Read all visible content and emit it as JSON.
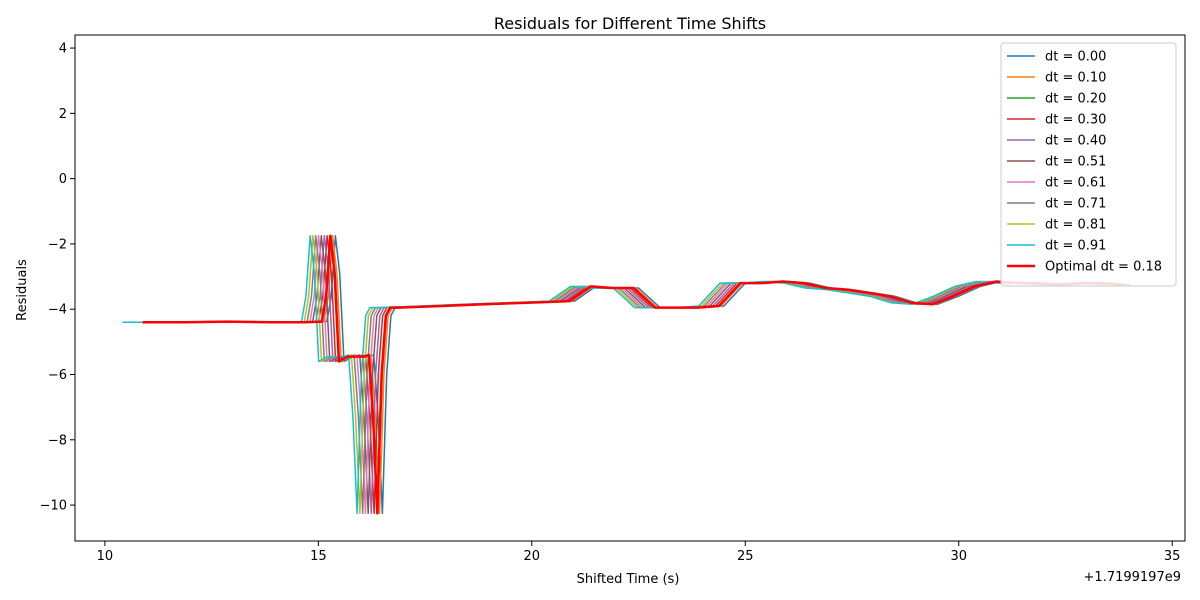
{
  "chart_data": {
    "type": "line",
    "title": "Residuals for Different Time Shifts",
    "xlabel": "Shifted Time (s)",
    "ylabel": "Residuals",
    "x_offset_label": "+1.7199197e9",
    "xlim": [
      9.3,
      35.3
    ],
    "ylim": [
      -11.1,
      4.4
    ],
    "xticks": [
      10,
      15,
      20,
      25,
      30,
      35
    ],
    "yticks": [
      -10,
      -8,
      -6,
      -4,
      -2,
      0,
      2,
      4
    ],
    "ytick_labels": [
      "−10",
      "−8",
      "−6",
      "−4",
      "−2",
      "0",
      "2",
      "4"
    ],
    "grid": false,
    "legend_position": "top-right",
    "base_series": {
      "name": "dt = 0.00",
      "x": [
        11.0,
        12.0,
        13.0,
        14.0,
        14.8,
        15.2,
        15.3,
        15.4,
        15.5,
        15.6,
        15.8,
        16.0,
        16.2,
        16.3,
        16.4,
        16.5,
        16.6,
        16.7,
        16.8,
        17.0,
        18.0,
        19.0,
        20.0,
        20.5,
        21.0,
        21.5,
        22.0,
        22.5,
        23.0,
        23.5,
        24.0,
        24.5,
        25.0,
        25.5,
        26.0,
        26.5,
        27.0,
        27.5,
        28.0,
        28.5,
        29.0,
        29.5,
        30.0,
        30.5,
        31.0,
        31.5,
        32.0,
        32.5,
        33.0,
        33.5,
        34.0
      ],
      "y": [
        -4.4,
        -4.4,
        -4.38,
        -4.4,
        -4.4,
        -4.38,
        -3.6,
        -1.75,
        -2.9,
        -5.6,
        -5.45,
        -5.45,
        -5.45,
        -5.4,
        -7.3,
        -10.25,
        -6.0,
        -4.2,
        -3.95,
        -3.95,
        -3.9,
        -3.85,
        -3.8,
        -3.78,
        -3.75,
        -3.3,
        -3.35,
        -3.35,
        -3.95,
        -3.95,
        -3.95,
        -3.9,
        -3.2,
        -3.2,
        -3.15,
        -3.2,
        -3.35,
        -3.4,
        -3.5,
        -3.6,
        -3.8,
        -3.85,
        -3.6,
        -3.3,
        -3.15,
        -3.2,
        -3.2,
        -3.25,
        -3.2,
        -3.2,
        -3.25
      ]
    },
    "series": [
      {
        "name": "dt = 0.00",
        "dt": 0.0,
        "color": "#1f77b4"
      },
      {
        "name": "dt = 0.10",
        "dt": 0.1,
        "color": "#ff7f0e"
      },
      {
        "name": "dt = 0.20",
        "dt": 0.2,
        "color": "#2ca02c"
      },
      {
        "name": "dt = 0.30",
        "dt": 0.3,
        "color": "#d62728"
      },
      {
        "name": "dt = 0.40",
        "dt": 0.4,
        "color": "#9467bd"
      },
      {
        "name": "dt = 0.51",
        "dt": 0.51,
        "color": "#8c564b"
      },
      {
        "name": "dt = 0.61",
        "dt": 0.61,
        "color": "#e377c2"
      },
      {
        "name": "dt = 0.71",
        "dt": 0.71,
        "color": "#7f7f7f"
      },
      {
        "name": "dt = 0.81",
        "dt": 0.81,
        "color": "#bcbd22"
      },
      {
        "name": "dt = 0.91",
        "dt": 0.91,
        "color": "#17becf"
      },
      {
        "name": "Optimal dt = 0.18",
        "dt": 0.18,
        "color": "#ff0000",
        "bold": true
      }
    ]
  }
}
